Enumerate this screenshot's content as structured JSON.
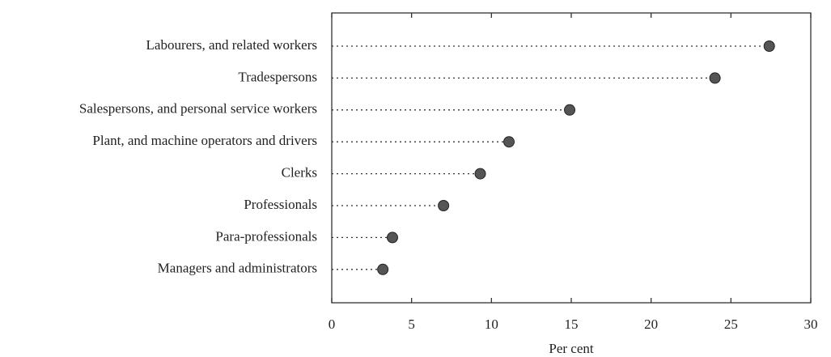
{
  "chart_data": {
    "type": "dot",
    "categories": [
      "Labourers, and related workers",
      "Tradespersons",
      "Salespersons, and personal service workers",
      "Plant, and machine operators and drivers",
      "Clerks",
      "Professionals",
      "Para-professionals",
      "Managers and administrators"
    ],
    "values": [
      27.4,
      24.0,
      14.9,
      11.1,
      9.3,
      7.0,
      3.8,
      3.2
    ],
    "color": "#555555",
    "xlabel": "Per cent",
    "xlim": [
      0,
      30
    ],
    "xticks": [
      0,
      5,
      10,
      15,
      20,
      25,
      30
    ]
  }
}
